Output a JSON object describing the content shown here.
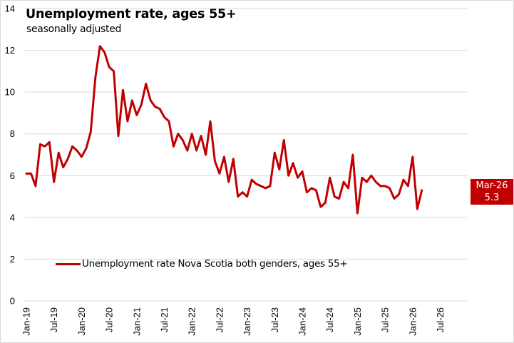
{
  "chart_data": {
    "type": "line",
    "title": "Unemployment rate, ages 55+",
    "subtitle": "seasonally adjusted",
    "xlabel": "",
    "ylabel": "",
    "ylim": [
      0,
      14
    ],
    "yticks": [
      "0",
      "2",
      "4",
      "6",
      "8",
      "10",
      "12",
      "14"
    ],
    "yticks_values": [
      0,
      2,
      4,
      6,
      8,
      10,
      12,
      14
    ],
    "x_start": "Jan-19",
    "x_end": "Oct-26",
    "xticks": [
      "Jan-19",
      "Jul-19",
      "Jan-20",
      "Jul-20",
      "Jan-21",
      "Jul-21",
      "Jan-22",
      "Jul-22",
      "Jan-23",
      "Jul-23",
      "Jan-24",
      "Jul-24",
      "Jan-25",
      "Jul-25",
      "Jan-26",
      "Jul-26"
    ],
    "grid": true,
    "legend_position": "bottom-left inside",
    "series": [
      {
        "name": "Unemployment rate Nova Scotia both genders, ages 55+",
        "color": "#c00000",
        "start_month": "Jan-19",
        "values": [
          6.1,
          6.1,
          5.5,
          7.5,
          7.4,
          7.6,
          5.7,
          7.1,
          6.4,
          6.8,
          7.4,
          7.2,
          6.9,
          7.3,
          8.1,
          10.7,
          12.2,
          11.9,
          11.2,
          11.0,
          7.9,
          10.1,
          8.6,
          9.6,
          8.9,
          9.4,
          10.4,
          9.6,
          9.3,
          9.2,
          8.8,
          8.6,
          7.4,
          8.0,
          7.7,
          7.2,
          8.0,
          7.2,
          7.9,
          7.0,
          8.6,
          6.7,
          6.1,
          6.9,
          5.7,
          6.8,
          5.0,
          5.2,
          5.0,
          5.8,
          5.6,
          5.5,
          5.4,
          5.5,
          7.1,
          6.3,
          7.7,
          6.0,
          6.6,
          5.9,
          6.2,
          5.2,
          5.4,
          5.3,
          4.5,
          4.7,
          5.9,
          5.0,
          4.9,
          5.7,
          5.4,
          7.0,
          4.2,
          5.9,
          5.7,
          6.0,
          5.7,
          5.5,
          5.5,
          5.4,
          4.9,
          5.1,
          5.8,
          5.5,
          6.9,
          4.4,
          5.3
        ]
      }
    ],
    "annotation": {
      "label": "Mar-26",
      "value": "5.3",
      "color": "#c00000"
    }
  }
}
